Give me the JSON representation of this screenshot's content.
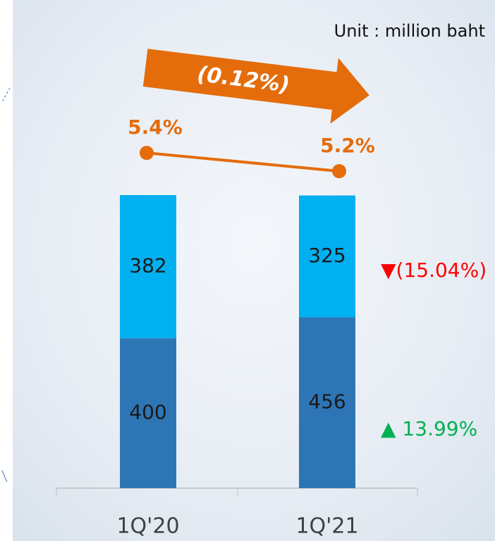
{
  "chart_data": {
    "type": "bar",
    "stacked": true,
    "categories": [
      "1Q'20",
      "1Q'21"
    ],
    "series": [
      {
        "color": "#2e75b6",
        "values": [
          400,
          456
        ]
      },
      {
        "color": "#00b0f0",
        "values": [
          382,
          325
        ]
      }
    ],
    "line": {
      "color": "#e46c0a",
      "values": [
        5.4,
        5.2
      ],
      "value_labels": [
        "5.4%",
        "5.2%"
      ]
    },
    "unit_note": "Unit : million baht",
    "line_change": "(0.12%)",
    "series_changes": [
      "▲ 13.99%",
      "▼(15.04%)"
    ]
  }
}
